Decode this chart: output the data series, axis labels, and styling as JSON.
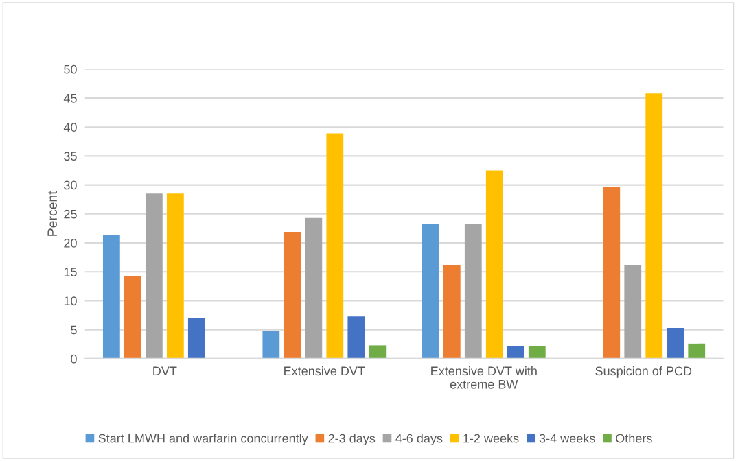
{
  "chart_data": {
    "type": "bar",
    "ylabel": "Percent",
    "categories": [
      "DVT",
      "Extensive DVT",
      "Extensive DVT with\nextreme BW",
      "Suspicion of PCD"
    ],
    "series": [
      {
        "name": "Start LMWH and warfarin concurrently",
        "color": "#5b9bd5",
        "values": [
          21.3,
          4.8,
          23.2,
          null
        ]
      },
      {
        "name": "2-3 days",
        "color": "#ed7d31",
        "values": [
          14.2,
          21.9,
          16.2,
          29.6
        ]
      },
      {
        "name": "4-6 days",
        "color": "#a5a5a5",
        "values": [
          28.5,
          24.3,
          23.2,
          16.2
        ]
      },
      {
        "name": "1-2 weeks",
        "color": "#ffc000",
        "values": [
          28.5,
          38.9,
          32.5,
          45.8
        ]
      },
      {
        "name": "3-4 weeks",
        "color": "#4472c4",
        "values": [
          7.0,
          7.3,
          2.2,
          5.3
        ]
      },
      {
        "name": "Others",
        "color": "#70ad47",
        "values": [
          null,
          2.3,
          2.2,
          2.6
        ]
      }
    ],
    "ylim": [
      0,
      50
    ],
    "yticks": [
      0,
      5,
      10,
      15,
      20,
      25,
      30,
      35,
      40,
      45,
      50
    ],
    "grid": "y",
    "legend": "bottom"
  }
}
